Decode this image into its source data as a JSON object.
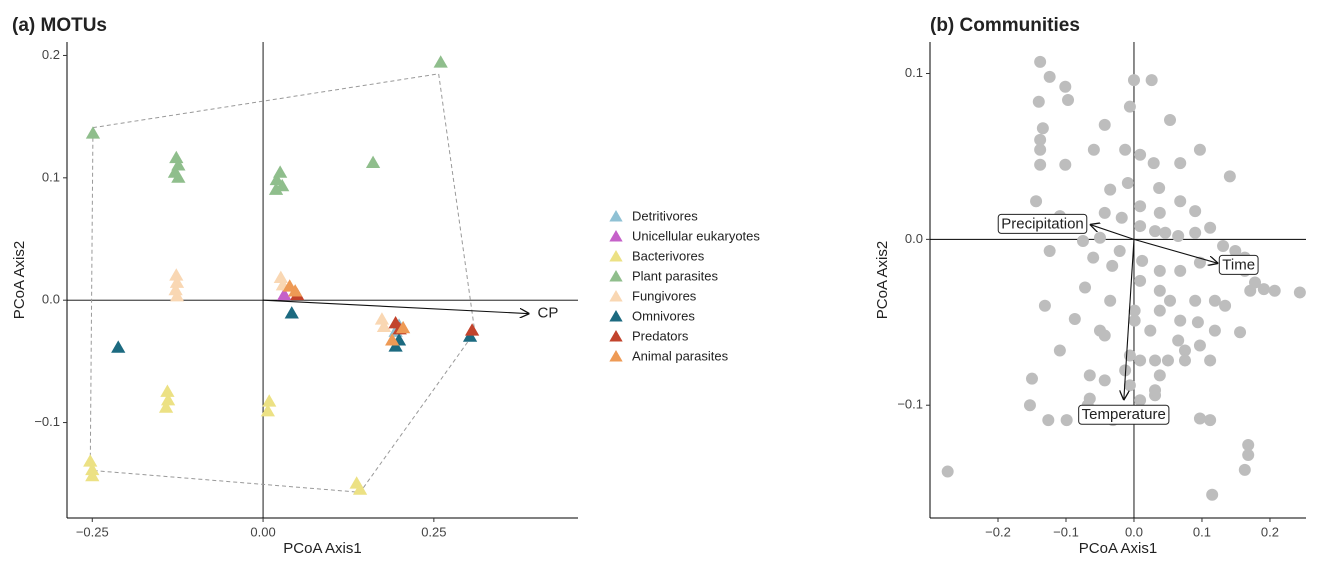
{
  "chart_data": [
    {
      "type": "scatter",
      "title": "(a) MOTUs",
      "xlabel": "PCoA Axis1",
      "ylabel": "PCoA Axis2",
      "xlim": [
        -0.287,
        0.461
      ],
      "ylim": [
        -0.178,
        0.211
      ],
      "xticks": [
        {
          "value": -0.25,
          "label": "−0.25"
        },
        {
          "value": 0,
          "label": "0.00"
        },
        0.25
      ],
      "yticks": [
        {
          "value": -0.1,
          "label": "−0.1"
        },
        {
          "value": 0,
          "label": "0.0"
        },
        0.1,
        0.2
      ],
      "marker": "triangle",
      "legend": "right",
      "zero_lines": true,
      "series": [
        {
          "name": "Detritivores",
          "color": "#8fc1d4",
          "x": [
            0.194,
            0.199
          ],
          "y": [
            -0.026,
            -0.021
          ]
        },
        {
          "name": "Unicellular eukaryotes",
          "color": "#c561c9",
          "x": [
            0.031
          ],
          "y": [
            0.004
          ]
        },
        {
          "name": "Bacterivores",
          "color": "#ece184",
          "x": [
            -0.14,
            -0.139,
            -0.142,
            0.009,
            0.007,
            -0.253,
            -0.25,
            -0.25,
            0.137,
            0.142
          ],
          "y": [
            -0.075,
            -0.082,
            -0.088,
            -0.083,
            -0.091,
            -0.132,
            -0.139,
            -0.144,
            -0.15,
            -0.155
          ]
        },
        {
          "name": "Plant parasites",
          "color": "#8fbe8c",
          "x": [
            0.26,
            -0.249,
            0.161,
            -0.127,
            -0.124,
            -0.129,
            -0.124,
            0.025,
            0.02,
            0.028,
            0.019
          ],
          "y": [
            0.194,
            0.136,
            0.112,
            0.116,
            0.11,
            0.104,
            0.1,
            0.104,
            0.098,
            0.093,
            0.09
          ]
        },
        {
          "name": "Fungivores",
          "color": "#f9d7b3",
          "x": [
            -0.127,
            -0.126,
            -0.128,
            -0.126,
            0.026,
            0.029,
            0.174,
            0.177
          ],
          "y": [
            0.02,
            0.014,
            0.008,
            0.003,
            0.018,
            0.012,
            -0.016,
            -0.022
          ]
        },
        {
          "name": "Omnivores",
          "color": "#1c6a80",
          "x": [
            -0.212,
            0.042,
            0.194,
            0.199,
            0.303
          ],
          "y": [
            -0.039,
            -0.011,
            -0.038,
            -0.033,
            -0.03
          ]
        },
        {
          "name": "Predators",
          "color": "#c2432c",
          "x": [
            0.05,
            0.194,
            0.2,
            0.306
          ],
          "y": [
            0.004,
            -0.019,
            -0.024,
            -0.025
          ]
        },
        {
          "name": "Animal parasites",
          "color": "#ee9a55",
          "x": [
            0.039,
            0.047,
            0.189,
            0.205
          ],
          "y": [
            0.011,
            0.007,
            -0.033,
            -0.023
          ]
        }
      ],
      "hull": {
        "x": [
          -0.249,
          0.257,
          0.31,
          0.142,
          -0.253,
          -0.249
        ],
        "y": [
          0.141,
          0.185,
          -0.026,
          -0.157,
          -0.139,
          0.141
        ]
      },
      "arrows": [
        {
          "label": "CP",
          "x": 0.39,
          "y": -0.011
        }
      ]
    },
    {
      "type": "scatter",
      "title": "(b) Communities",
      "xlabel": "PCoA Axis1",
      "ylabel": "PCoA Axis2",
      "xlim": [
        -0.3,
        0.253
      ],
      "ylim": [
        -0.168,
        0.119
      ],
      "xticks": [
        {
          "value": -0.2,
          "label": "−0.2"
        },
        {
          "value": -0.1,
          "label": "−0.1"
        },
        {
          "value": 0,
          "label": "0.0"
        },
        0.1,
        0.2
      ],
      "yticks": [
        {
          "value": -0.1,
          "label": "−0.1"
        },
        {
          "value": 0,
          "label": "0.0"
        },
        0.1
      ],
      "marker": "circle",
      "zero_lines": true,
      "label_boxes": true,
      "series": [
        {
          "color": "#bdbdbd",
          "x": [
            -0.138,
            -0.124,
            -0.101,
            -0.14,
            -0.097,
            0,
            0.026,
            -0.006,
            -0.138,
            -0.138,
            -0.138,
            -0.134,
            -0.043,
            0.053,
            -0.059,
            -0.013,
            0.009,
            -0.101,
            0.029,
            0.068,
            0.097,
            0.141,
            -0.144,
            -0.109,
            -0.035,
            -0.009,
            0.037,
            -0.043,
            -0.018,
            0.009,
            0.038,
            0.068,
            0.09,
            0.009,
            0.031,
            0.046,
            0.065,
            0.09,
            0.112,
            0.131,
            0.149,
            0.163,
            -0.124,
            -0.075,
            -0.05,
            -0.021,
            -0.032,
            0.012,
            0.038,
            -0.06,
            0.068,
            0.097,
            0.163,
            0.178,
            0.191,
            0.207,
            0.244,
            0.171,
            -0.072,
            0.009,
            0.038,
            0.053,
            0.09,
            0.119,
            0.134,
            -0.035,
            0.001,
            0.038,
            0.068,
            0.094,
            -0.087,
            -0.131,
            -0.05,
            -0.043,
            0.001,
            0.024,
            0.065,
            0.097,
            0.119,
            0.156,
            0.075,
            -0.109,
            0.031,
            0.05,
            0.075,
            -0.006,
            0.009,
            -0.013,
            -0.043,
            -0.006,
            0.031,
            0.038,
            -0.065,
            -0.15,
            0.112,
            -0.153,
            -0.065,
            -0.068,
            0.009,
            0.031,
            0.097,
            -0.126,
            -0.099,
            -0.031,
            0.112,
            0.168,
            0.168,
            0.163,
            0.115,
            -0.274
          ],
          "y": [
            0.107,
            0.098,
            0.092,
            0.083,
            0.084,
            0.096,
            0.096,
            0.08,
            0.06,
            0.054,
            0.045,
            0.067,
            0.069,
            0.072,
            0.054,
            0.054,
            0.051,
            0.045,
            0.046,
            0.046,
            0.054,
            0.038,
            0.023,
            0.014,
            0.03,
            0.034,
            0.031,
            0.016,
            0.013,
            0.02,
            0.016,
            0.023,
            0.017,
            0.008,
            0.005,
            0.004,
            0.002,
            0.004,
            0.007,
            -0.004,
            -0.007,
            -0.011,
            -0.007,
            -0.001,
            0.001,
            -0.007,
            -0.016,
            -0.013,
            -0.019,
            -0.011,
            -0.019,
            -0.014,
            -0.019,
            -0.026,
            -0.03,
            -0.031,
            -0.032,
            -0.031,
            -0.029,
            -0.025,
            -0.031,
            -0.037,
            -0.037,
            -0.037,
            -0.04,
            -0.037,
            -0.043,
            -0.043,
            -0.049,
            -0.05,
            -0.048,
            -0.04,
            -0.055,
            -0.058,
            -0.049,
            -0.055,
            -0.061,
            -0.064,
            -0.055,
            -0.056,
            -0.067,
            -0.067,
            -0.073,
            -0.073,
            -0.073,
            -0.07,
            -0.073,
            -0.079,
            -0.085,
            -0.088,
            -0.094,
            -0.082,
            -0.082,
            -0.084,
            -0.073,
            -0.1,
            -0.096,
            -0.1,
            -0.097,
            -0.091,
            -0.108,
            -0.109,
            -0.109,
            -0.109,
            -0.109,
            -0.124,
            -0.13,
            -0.139,
            -0.154,
            -0.14
          ]
        }
      ],
      "arrows": [
        {
          "label": "Precipitation",
          "x": -0.065,
          "y": 0.009
        },
        {
          "label": "Time",
          "x": 0.124,
          "y": -0.0145
        },
        {
          "label": "Temperature",
          "x": -0.015,
          "y": -0.097
        }
      ]
    }
  ]
}
